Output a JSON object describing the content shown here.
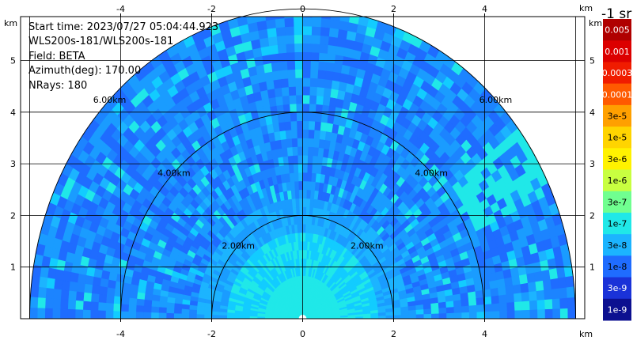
{
  "info": {
    "start_time": "Start time: 2023/07/27 05:04:44.923",
    "instrument": "WLS200s-181/WLS200s-181",
    "field": "Field: BETA",
    "azimuth": "Azimuth(deg): 170.00",
    "nrays": "NRays: 180"
  },
  "colorbar": {
    "title": "-1 sr",
    "labels": [
      "0.005",
      "0.001",
      "0.0003",
      "0.0001",
      "3e-5",
      "1e-5",
      "3e-6",
      "1e-6",
      "3e-7",
      "1e-7",
      "3e-8",
      "1e-8",
      "3e-9",
      "1e-9"
    ],
    "colors": [
      "#b00000",
      "#dc0000",
      "#f01c00",
      "#ff5a00",
      "#ffa000",
      "#ffd400",
      "#fff200",
      "#c8ff40",
      "#70ff90",
      "#20e8e8",
      "#1cb4ff",
      "#1f6cff",
      "#1a32d8",
      "#0c1090"
    ],
    "label_colors": [
      "#ffffff",
      "#ffffff",
      "#ffffff",
      "#ffffff",
      "#000000",
      "#000000",
      "#000000",
      "#000000",
      "#000000",
      "#000000",
      "#000000",
      "#000000",
      "#ffffff",
      "#ffffff"
    ]
  },
  "chart_data": {
    "type": "heatmap",
    "title": "",
    "plot_kind": "RHI-style polar sector scan",
    "xlabel": "km",
    "ylabel": "km",
    "xlim": [
      -6.2,
      6.2
    ],
    "ylim": [
      0,
      5.85
    ],
    "x_ticks": [
      -4,
      -2,
      0,
      2,
      4
    ],
    "y_ticks": [
      1,
      2,
      3,
      4,
      5
    ],
    "range_rings_km": [
      2,
      4,
      6
    ],
    "range_ring_labels": [
      "2.00km",
      "4.00km",
      "6.00km"
    ],
    "grid": true,
    "max_range_km": 6,
    "field": "BETA",
    "azimuth_deg": 170.0,
    "n_rays": 180
  }
}
